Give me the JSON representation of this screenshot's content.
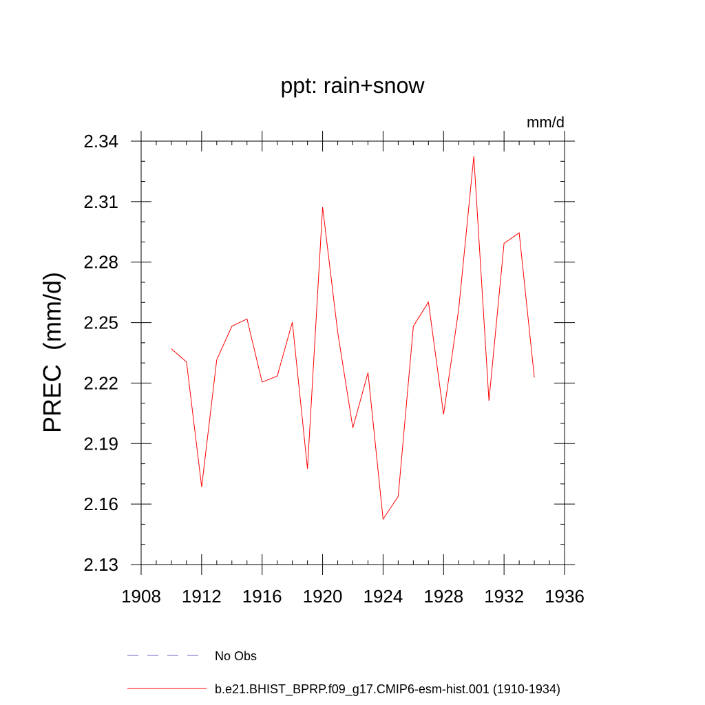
{
  "chart_data": {
    "type": "line",
    "title": "ppt: rain+snow",
    "units_label": "mm/d",
    "ylabel": "PREC  (mm/d)",
    "xlabel": "",
    "xlim": [
      1908,
      1936
    ],
    "ylim": [
      2.13,
      2.34
    ],
    "x_ticks": [
      1908,
      1912,
      1916,
      1920,
      1924,
      1928,
      1932,
      1936
    ],
    "x_tick_labels": [
      "1908",
      "1912",
      "1916",
      "1920",
      "1924",
      "1928",
      "1932",
      "1936"
    ],
    "y_ticks": [
      2.13,
      2.16,
      2.19,
      2.22,
      2.25,
      2.28,
      2.31,
      2.34
    ],
    "y_tick_labels": [
      "2.13",
      "2.16",
      "2.19",
      "2.22",
      "2.25",
      "2.28",
      "2.31",
      "2.34"
    ],
    "grid": false,
    "series": [
      {
        "name": "b.e21.BHIST_BPRP.f09_g17.CMIP6-esm-hist.001 (1910-1934)",
        "color": "#ff0000",
        "x": [
          1910,
          1911,
          1912,
          1913,
          1914,
          1915,
          1916,
          1917,
          1918,
          1919,
          1920,
          1921,
          1922,
          1923,
          1924,
          1925,
          1926,
          1927,
          1928,
          1929,
          1930,
          1931,
          1932,
          1933,
          1934
        ],
        "values": [
          2.237,
          2.2305,
          2.1685,
          2.2315,
          2.2482,
          2.2518,
          2.2205,
          2.2235,
          2.2502,
          2.1775,
          2.3073,
          2.2452,
          2.1978,
          2.2252,
          2.1525,
          2.1638,
          2.2482,
          2.2602,
          2.2045,
          2.2568,
          2.3325,
          2.2112,
          2.2893,
          2.2945,
          2.2228
        ]
      }
    ],
    "legend": [
      {
        "label": "No Obs",
        "color": "#7060c0",
        "style": "dashed"
      },
      {
        "label": "b.e21.BHIST_BPRP.f09_g17.CMIP6-esm-hist.001 (1910-1934)",
        "color": "#ff0000",
        "style": "solid"
      }
    ],
    "legend_position": "bottom"
  }
}
